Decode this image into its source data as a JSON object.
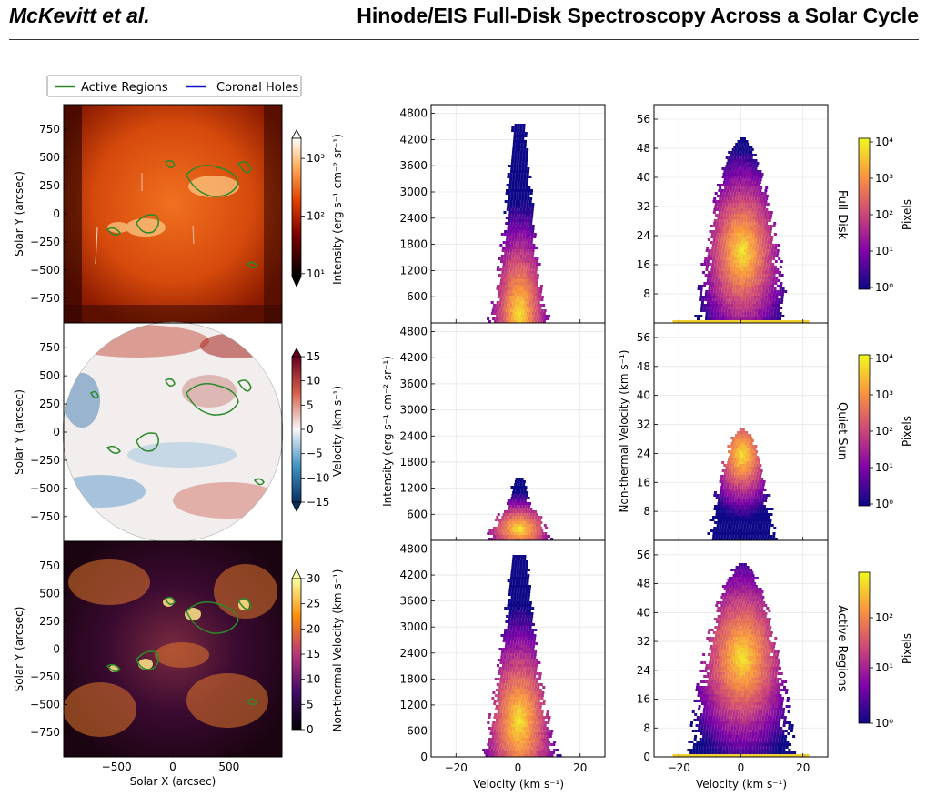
{
  "header": {
    "authors": "McKevitt et al.",
    "title": "Hinode/EIS Full-Disk Spectroscopy Across a Solar Cycle"
  },
  "legend": {
    "items": [
      {
        "label": "Active Regions",
        "color": "#2a8a2a"
      },
      {
        "label": "Coronal Holes",
        "color": "#1010cc"
      }
    ]
  },
  "maps": [
    {
      "ylabel": "Solar Y (arcsec)",
      "yticks": [
        "750",
        "500",
        "250",
        "0",
        "−250",
        "−500",
        "−750"
      ],
      "cbar_label": "Intensity (erg s⁻¹ cm⁻² sr⁻¹)",
      "cbar_ticks": [
        "10³",
        "10²",
        "10¹"
      ],
      "cmap": "intensity"
    },
    {
      "ylabel": "Solar Y (arcsec)",
      "yticks": [
        "750",
        "500",
        "250",
        "0",
        "−250",
        "−500",
        "−750"
      ],
      "cbar_label": "Velocity (km s⁻¹)",
      "cbar_ticks": [
        "15",
        "10",
        "5",
        "0",
        "−5",
        "−10",
        "−15"
      ],
      "cmap": "velocity"
    },
    {
      "ylabel": "Solar Y (arcsec)",
      "yticks": [
        "750",
        "500",
        "250",
        "0",
        "−250",
        "−500",
        "−750"
      ],
      "cbar_label": "Non-thermal Velocity (km s⁻¹)",
      "cbar_ticks": [
        "30",
        "25",
        "20",
        "15",
        "10",
        "5",
        "0"
      ],
      "cmap": "ntv"
    }
  ],
  "map_xlabel": "Solar X (arcsec)",
  "map_xticks": [
    "−500",
    "0",
    "500"
  ],
  "rows": [
    "Full Disk",
    "Quiet Sun",
    "Active Regions"
  ],
  "pixels_label": "Pixels",
  "pixel_cbar_ticks": [
    [
      "10⁴",
      "10³",
      "10²",
      "10¹",
      "10⁰"
    ],
    [
      "10⁴",
      "10³",
      "10²",
      "10¹",
      "10⁰"
    ],
    [
      "10²",
      "10¹",
      "10⁰"
    ]
  ],
  "hist_intensity": {
    "ylabel": "Intensity (erg s⁻¹ cm⁻² sr⁻¹)",
    "yticks": [
      "4800",
      "4200",
      "3600",
      "3000",
      "2400",
      "1800",
      "1200",
      "600"
    ],
    "bottom_yticks": [
      "4800",
      "4200",
      "3600",
      "3000",
      "2400",
      "1800",
      "1200",
      "600",
      "0"
    ]
  },
  "hist_ntv": {
    "ylabel": "Non-thermal Velocity (km s⁻¹)",
    "yticks": [
      "56",
      "48",
      "40",
      "32",
      "24",
      "16",
      "8"
    ],
    "bottom_yticks": [
      "56",
      "48",
      "40",
      "32",
      "24",
      "16",
      "8",
      "0"
    ]
  },
  "hist_xlabel": "Velocity (km s⁻¹)",
  "hist_xticks": [
    "−20",
    "0",
    "20"
  ],
  "chart_data": [
    {
      "type": "heatmap",
      "title": "",
      "xlabel": "Velocity (km s⁻¹)",
      "ylabel": "Intensity (erg s⁻¹ cm⁻² sr⁻¹)",
      "row": "Full Disk",
      "xlim": [
        -28,
        28
      ],
      "ylim": [
        0,
        5000
      ],
      "color_scale": "log",
      "color_label": "Pixels"
    },
    {
      "type": "heatmap",
      "title": "",
      "xlabel": "Velocity (km s⁻¹)",
      "ylabel": "Non-thermal Velocity (km s⁻¹)",
      "row": "Full Disk",
      "xlim": [
        -28,
        28
      ],
      "ylim": [
        0,
        60
      ],
      "color_scale": "log",
      "color_label": "Pixels"
    },
    {
      "type": "heatmap",
      "title": "",
      "xlabel": "Velocity (km s⁻¹)",
      "ylabel": "Intensity (erg s⁻¹ cm⁻² sr⁻¹)",
      "row": "Quiet Sun",
      "xlim": [
        -28,
        28
      ],
      "ylim": [
        0,
        5000
      ],
      "color_scale": "log",
      "color_label": "Pixels"
    },
    {
      "type": "heatmap",
      "title": "",
      "xlabel": "Velocity (km s⁻¹)",
      "ylabel": "Non-thermal Velocity (km s⁻¹)",
      "row": "Quiet Sun",
      "xlim": [
        -28,
        28
      ],
      "ylim": [
        0,
        60
      ],
      "color_scale": "log",
      "color_label": "Pixels"
    },
    {
      "type": "heatmap",
      "title": "",
      "xlabel": "Velocity (km s⁻¹)",
      "ylabel": "Intensity (erg s⁻¹ cm⁻² sr⁻¹)",
      "row": "Active Regions",
      "xlim": [
        -28,
        28
      ],
      "ylim": [
        0,
        5000
      ],
      "color_scale": "log",
      "color_label": "Pixels"
    },
    {
      "type": "heatmap",
      "title": "",
      "xlabel": "Velocity (km s⁻¹)",
      "ylabel": "Non-thermal Velocity (km s⁻¹)",
      "row": "Active Regions",
      "xlim": [
        -28,
        28
      ],
      "ylim": [
        0,
        60
      ],
      "color_scale": "log",
      "color_label": "Pixels"
    }
  ]
}
